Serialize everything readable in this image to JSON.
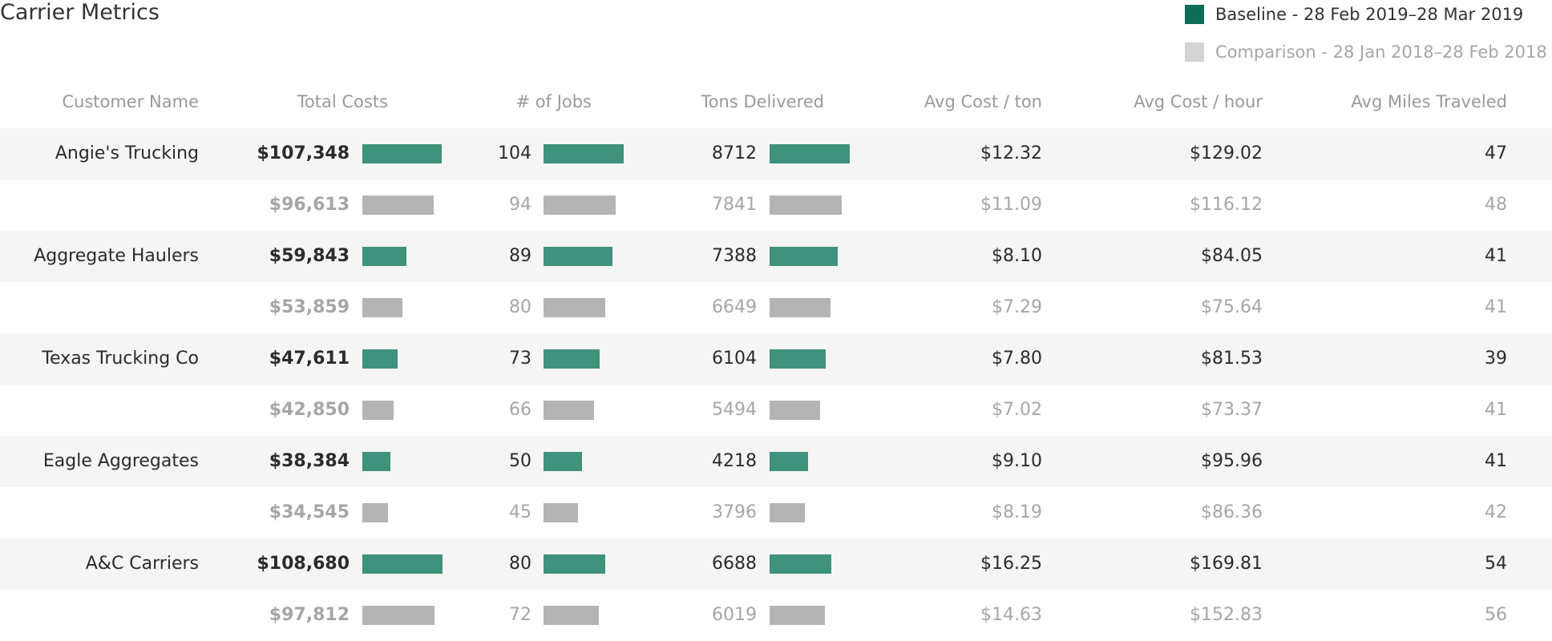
{
  "title": "Carrier Metrics",
  "legend": {
    "baseline": {
      "label": "Baseline - 28 Feb 2019–28 Mar 2019",
      "color": "#0e6e55"
    },
    "comparison": {
      "label": "Comparison - 28 Jan 2018–28 Feb 2018",
      "color": "#d4d4d4"
    }
  },
  "columns": [
    "Customer Name",
    "Total Costs",
    "# of Jobs",
    "Tons Delivered",
    "Avg Cost / ton",
    "Avg Cost / hour",
    "Avg Miles Traveled"
  ],
  "colors": {
    "baseline_bar": "#3f927c",
    "comparison_bar": "#b4b4b4",
    "stripe": "#f5f5f5"
  },
  "rows": [
    {
      "customer": "Angie's Trucking",
      "baseline": {
        "total_costs": "$107,348",
        "jobs": "104",
        "tons": "8712",
        "avg_cost_ton": "$12.32",
        "avg_cost_hour": "$129.02",
        "avg_miles": "47"
      },
      "comparison": {
        "total_costs": "$96,613",
        "jobs": "94",
        "tons": "7841",
        "avg_cost_ton": "$11.09",
        "avg_cost_hour": "$116.12",
        "avg_miles": "48"
      }
    },
    {
      "customer": "Aggregate Haulers",
      "baseline": {
        "total_costs": "$59,843",
        "jobs": "89",
        "tons": "7388",
        "avg_cost_ton": "$8.10",
        "avg_cost_hour": "$84.05",
        "avg_miles": "41"
      },
      "comparison": {
        "total_costs": "$53,859",
        "jobs": "80",
        "tons": "6649",
        "avg_cost_ton": "$7.29",
        "avg_cost_hour": "$75.64",
        "avg_miles": "41"
      }
    },
    {
      "customer": "Texas Trucking Co",
      "baseline": {
        "total_costs": "$47,611",
        "jobs": "73",
        "tons": "6104",
        "avg_cost_ton": "$7.80",
        "avg_cost_hour": "$81.53",
        "avg_miles": "39"
      },
      "comparison": {
        "total_costs": "$42,850",
        "jobs": "66",
        "tons": "5494",
        "avg_cost_ton": "$7.02",
        "avg_cost_hour": "$73.37",
        "avg_miles": "41"
      }
    },
    {
      "customer": "Eagle Aggregates",
      "baseline": {
        "total_costs": "$38,384",
        "jobs": "50",
        "tons": "4218",
        "avg_cost_ton": "$9.10",
        "avg_cost_hour": "$95.96",
        "avg_miles": "41"
      },
      "comparison": {
        "total_costs": "$34,545",
        "jobs": "45",
        "tons": "3796",
        "avg_cost_ton": "$8.19",
        "avg_cost_hour": "$86.36",
        "avg_miles": "42"
      }
    },
    {
      "customer": "A&C Carriers",
      "baseline": {
        "total_costs": "$108,680",
        "jobs": "80",
        "tons": "6688",
        "avg_cost_ton": "$16.25",
        "avg_cost_hour": "$169.81",
        "avg_miles": "54"
      },
      "comparison": {
        "total_costs": "$97,812",
        "jobs": "72",
        "tons": "6019",
        "avg_cost_ton": "$14.63",
        "avg_cost_hour": "$152.83",
        "avg_miles": "56"
      }
    }
  ]
}
